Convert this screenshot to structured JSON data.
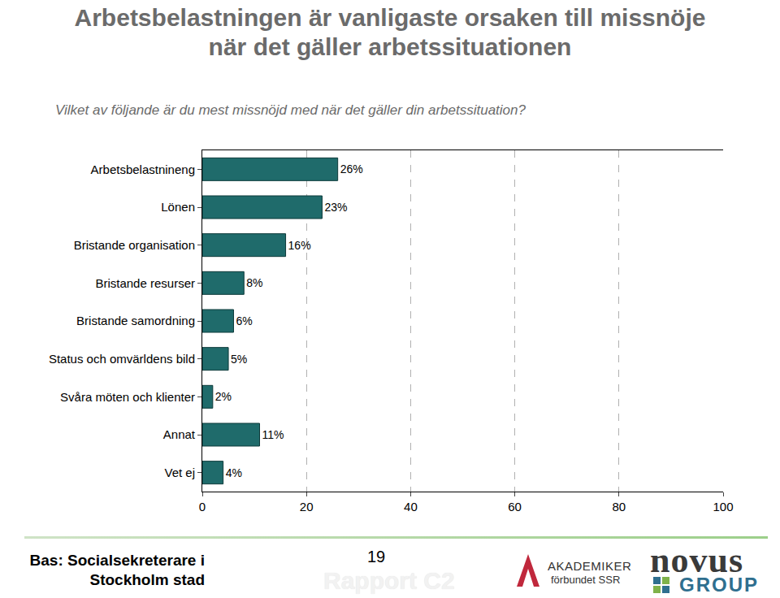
{
  "chart_data": {
    "type": "bar",
    "orientation": "horizontal",
    "title": "Arbetsbelastningen är vanligaste orsaken till missnöje när det gäller arbetssituationen",
    "subtitle": "Vilket av följande är du mest missnöjd med när det gäller din arbetssituation?",
    "categories": [
      "Arbetsbelastnineng",
      "Lönen",
      "Bristande organisation",
      "Bristande resurser",
      "Bristande samordning",
      "Status och omvärldens bild",
      "Svåra möten och klienter",
      "Annat",
      "Vet ej"
    ],
    "values": [
      26,
      23,
      16,
      8,
      6,
      5,
      2,
      11,
      4
    ],
    "value_labels": [
      "26%",
      "23%",
      "16%",
      "8%",
      "6%",
      "5%",
      "2%",
      "11%",
      "4%"
    ],
    "data_labels": true,
    "color": "#1f6b6b",
    "xlim": [
      0,
      100
    ],
    "xticks": [
      0,
      20,
      40,
      60,
      80,
      100
    ],
    "grid": true
  },
  "footer": {
    "source": "Bas: Socialsekreterare i Stockholm stad",
    "page": "19",
    "report": "Rapport C2",
    "logo_akademiker": [
      "AKADEMIKER",
      "förbundet SSR"
    ],
    "logo_novus": [
      "novus",
      "GROUP"
    ]
  }
}
